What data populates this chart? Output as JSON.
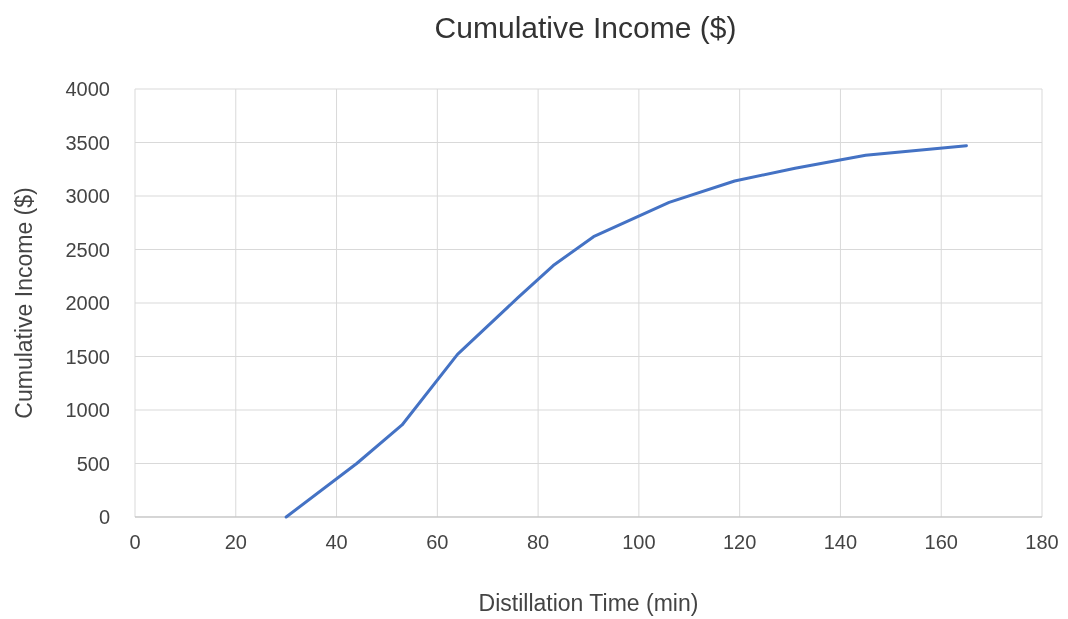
{
  "chart_data": {
    "type": "line",
    "title": "Cumulative Income ($)",
    "xlabel": "Distillation Time (min)",
    "ylabel": "Cumulative Income ($)",
    "x": [
      30,
      44,
      53,
      64,
      76,
      83,
      91,
      106,
      119,
      131,
      145,
      165
    ],
    "series": [
      {
        "color": "#4472c4",
        "values": [
          0,
          500,
          860,
          1520,
          2050,
          2350,
          2620,
          2940,
          3140,
          3260,
          3380,
          3470
        ]
      }
    ],
    "xlim": [
      0,
      180
    ],
    "xticks": [
      0,
      20,
      40,
      60,
      80,
      100,
      120,
      140,
      160,
      180
    ],
    "ylim": [
      0,
      4000
    ],
    "yticks": [
      0,
      500,
      1000,
      1500,
      2000,
      2500,
      3000,
      3500,
      4000
    ],
    "grid": true,
    "marker": "none",
    "line_style": "solid"
  }
}
